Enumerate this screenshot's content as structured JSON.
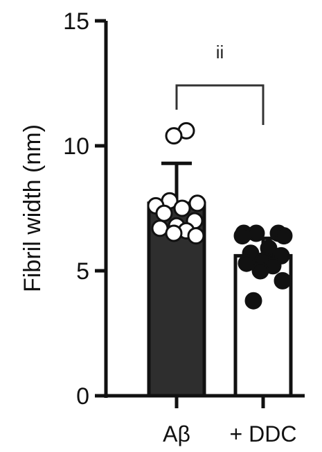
{
  "chart_data": {
    "type": "bar",
    "title": "",
    "xlabel": "",
    "ylabel": "Fibril width (nm)",
    "ylim": [
      0,
      15
    ],
    "yticks": [
      0,
      5,
      10,
      15
    ],
    "categories": [
      "Aβ",
      "+ DDC"
    ],
    "values": [
      7.7,
      5.6
    ],
    "errors": [
      1.6,
      0.7
    ],
    "bar_colors": [
      "#2e2e2e",
      "#ffffff"
    ],
    "points": [
      [
        10.6,
        10.4,
        7.8,
        7.7,
        7.6,
        7.5,
        7.3,
        7.0,
        6.8,
        6.7,
        6.6,
        6.5,
        6.4
      ],
      [
        6.5,
        6.5,
        6.5,
        6.4,
        6.4,
        5.9,
        5.7,
        5.6,
        5.4,
        5.3,
        5.2,
        5.0,
        4.6,
        3.8
      ]
    ],
    "point_colors": [
      "#ffffff",
      "#111111"
    ],
    "significance": {
      "between": [
        0,
        1
      ],
      "label": "ii"
    },
    "grid": false,
    "legend": "none"
  }
}
